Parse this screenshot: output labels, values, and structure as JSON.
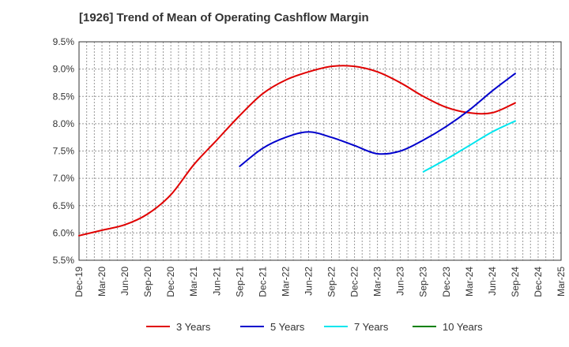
{
  "chart_data": {
    "type": "line",
    "title": "[1926]  Trend of Mean of Operating Cashflow Margin",
    "xlabel": "",
    "ylabel": "",
    "ylim": [
      5.5,
      9.5
    ],
    "yticks": [
      "5.5%",
      "6.0%",
      "6.5%",
      "7.0%",
      "7.5%",
      "8.0%",
      "8.5%",
      "9.0%",
      "9.5%"
    ],
    "x": [
      "Dec-19",
      "Mar-20",
      "Jun-20",
      "Sep-20",
      "Dec-20",
      "Mar-21",
      "Jun-21",
      "Sep-21",
      "Dec-21",
      "Mar-22",
      "Jun-22",
      "Sep-22",
      "Dec-22",
      "Mar-23",
      "Jun-23",
      "Sep-23",
      "Dec-23",
      "Mar-24",
      "Jun-24",
      "Sep-24",
      "Dec-24",
      "Mar-25"
    ],
    "grid": true,
    "legend_position": "bottom",
    "series": [
      {
        "name": "3 Years",
        "color": "#e00000",
        "values": [
          5.95,
          6.05,
          6.15,
          6.35,
          6.7,
          7.25,
          7.7,
          8.15,
          8.55,
          8.8,
          8.95,
          9.05,
          9.05,
          8.95,
          8.75,
          8.5,
          8.3,
          8.2,
          8.2,
          8.38,
          null,
          null
        ]
      },
      {
        "name": "5 Years",
        "color": "#0000cc",
        "values": [
          null,
          null,
          null,
          null,
          null,
          null,
          null,
          7.22,
          7.55,
          7.75,
          7.85,
          7.75,
          7.6,
          7.45,
          7.5,
          7.7,
          7.95,
          8.25,
          8.6,
          8.92,
          null,
          null
        ]
      },
      {
        "name": "7 Years",
        "color": "#00e5ee",
        "values": [
          null,
          null,
          null,
          null,
          null,
          null,
          null,
          null,
          null,
          null,
          null,
          null,
          null,
          null,
          null,
          7.12,
          7.35,
          7.6,
          7.85,
          8.05,
          null,
          null
        ]
      },
      {
        "name": "10 Years",
        "color": "#008000",
        "values": [
          null,
          null,
          null,
          null,
          null,
          null,
          null,
          null,
          null,
          null,
          null,
          null,
          null,
          null,
          null,
          null,
          null,
          null,
          null,
          null,
          null,
          null
        ]
      }
    ]
  }
}
